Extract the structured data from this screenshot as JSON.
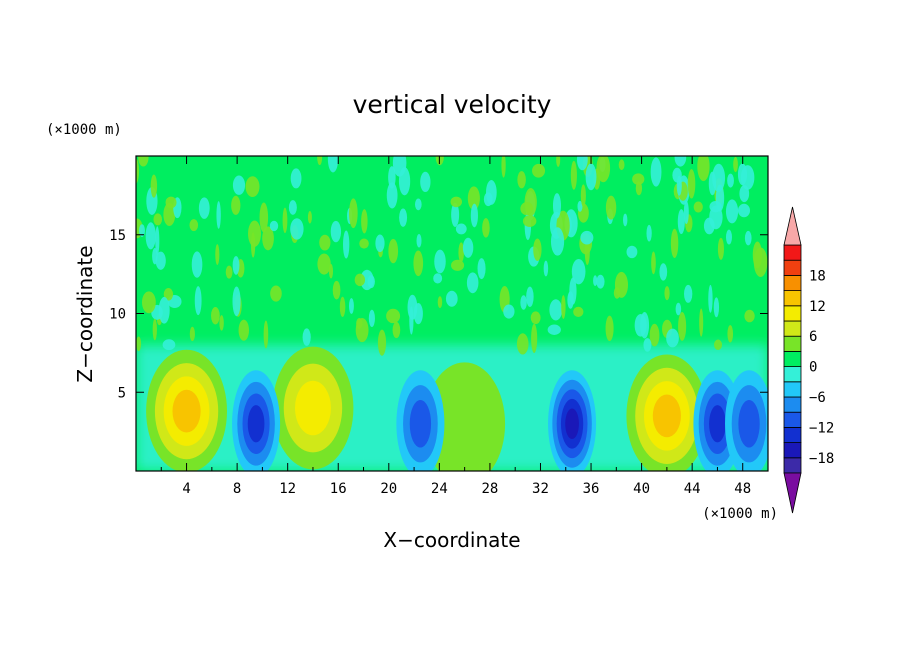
{
  "chart_data": {
    "type": "heatmap",
    "title": "vertical velocity",
    "xlabel": "X−coordinate",
    "ylabel": "Z−coordinate",
    "x_unit": "(×1000 m)",
    "y_unit": "(×1000 m)",
    "xlim": [
      0,
      50
    ],
    "ylim": [
      0,
      20
    ],
    "x_ticks": [
      4,
      8,
      12,
      16,
      20,
      24,
      28,
      32,
      36,
      40,
      44,
      48
    ],
    "x_tick_labels": [
      "4",
      "8",
      "12",
      "16",
      "20",
      "24",
      "28",
      "32",
      "36",
      "40",
      "44",
      "48"
    ],
    "y_ticks": [
      5,
      10,
      15
    ],
    "y_tick_labels": [
      "5",
      "10",
      "15"
    ],
    "colorbar": {
      "levels": [
        -21,
        -18,
        -15,
        -12,
        -9,
        -6,
        -3,
        0,
        3,
        6,
        9,
        12,
        15,
        18,
        21
      ],
      "colors": [
        "#7a0da0",
        "#3c2aa8",
        "#1a18b8",
        "#1230d0",
        "#1a58e8",
        "#1c8cf0",
        "#22c8f8",
        "#34f0d8",
        "#00ee60",
        "#78e428",
        "#d0e818",
        "#f4ec00",
        "#f8c400",
        "#f89000",
        "#f04010",
        "#f21818",
        "#f8a8a8"
      ],
      "tick_values": [
        -18,
        -12,
        -6,
        0,
        6,
        12,
        18
      ],
      "tick_labels": [
        "−18",
        "−12",
        "−6",
        "0",
        "6",
        "12",
        "18"
      ],
      "extend": "both"
    },
    "updraft_cells_km": [
      {
        "x": 4.0,
        "z": 3.8,
        "peak": 14
      },
      {
        "x": 14.0,
        "z": 4.0,
        "peak": 10
      },
      {
        "x": 26.0,
        "z": 3.0,
        "peak": 5
      },
      {
        "x": 42.0,
        "z": 3.5,
        "peak": 14
      }
    ],
    "downdraft_cells_km": [
      {
        "x": 9.5,
        "z": 3.0,
        "peak": -13
      },
      {
        "x": 22.5,
        "z": 3.0,
        "peak": -11
      },
      {
        "x": 34.5,
        "z": 3.0,
        "peak": -17
      },
      {
        "x": 46.0,
        "z": 3.0,
        "peak": -12
      },
      {
        "x": 48.5,
        "z": 3.0,
        "peak": -9
      }
    ]
  }
}
